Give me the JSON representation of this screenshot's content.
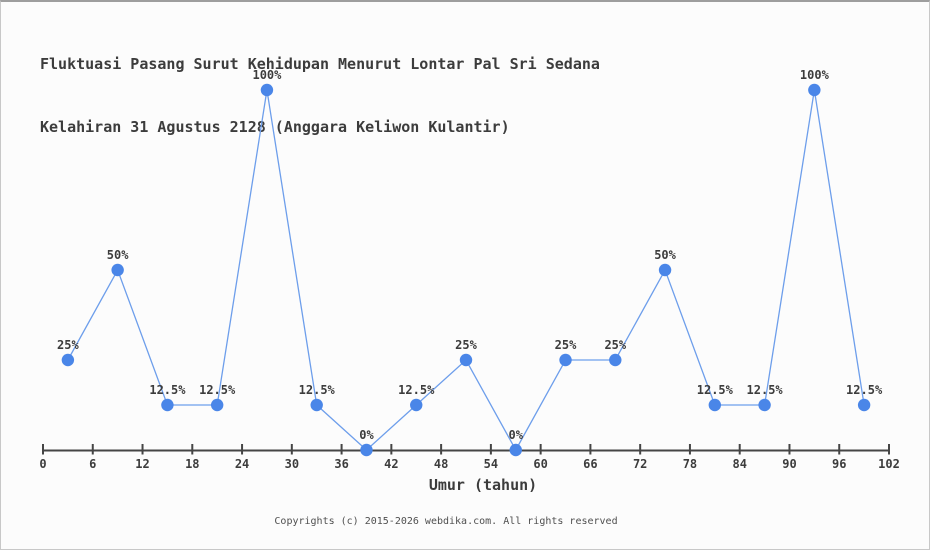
{
  "title": {
    "line1": "Fluktuasi Pasang Surut Kehidupan Menurut Lontar Pal Sri Sedana",
    "line2": "Kelahiran 31 Agustus 2128 (Anggara Keliwon Kulantir)"
  },
  "chart_data": {
    "type": "line",
    "title": "Fluktuasi Pasang Surut Kehidupan Menurut Lontar Pal Sri Sedana Kelahiran 31 Agustus 2128 (Anggara Keliwon Kulantir)",
    "xlabel": "Umur (tahun)",
    "ylabel": "",
    "x": [
      3,
      9,
      15,
      21,
      27,
      33,
      39,
      45,
      51,
      57,
      63,
      69,
      75,
      81,
      87,
      93,
      99
    ],
    "values": [
      25,
      50,
      12.5,
      12.5,
      100,
      12.5,
      0,
      12.5,
      25,
      0,
      25,
      25,
      50,
      12.5,
      12.5,
      100,
      12.5
    ],
    "point_labels": [
      "25%",
      "50%",
      "12.5%",
      "12.5%",
      "100%",
      "12.5%",
      "0%",
      "12.5%",
      "25%",
      "0%",
      "25%",
      "25%",
      "50%",
      "12.5%",
      "12.5%",
      "100%",
      "12.5%"
    ],
    "x_ticks": [
      0,
      6,
      12,
      18,
      24,
      30,
      36,
      42,
      48,
      54,
      60,
      66,
      72,
      78,
      84,
      90,
      96,
      102
    ],
    "xlim": [
      0,
      102
    ],
    "ylim": [
      0,
      100
    ],
    "grid": false,
    "legend": "none",
    "line_color": "#6d9eeb",
    "marker_color": "#4a86e8",
    "axis_color": "#454545",
    "label_color": "#3c3c3c"
  },
  "footer": {
    "copyright": "Copyrights (c) 2015-2026 webdika.com. All rights reserved"
  }
}
